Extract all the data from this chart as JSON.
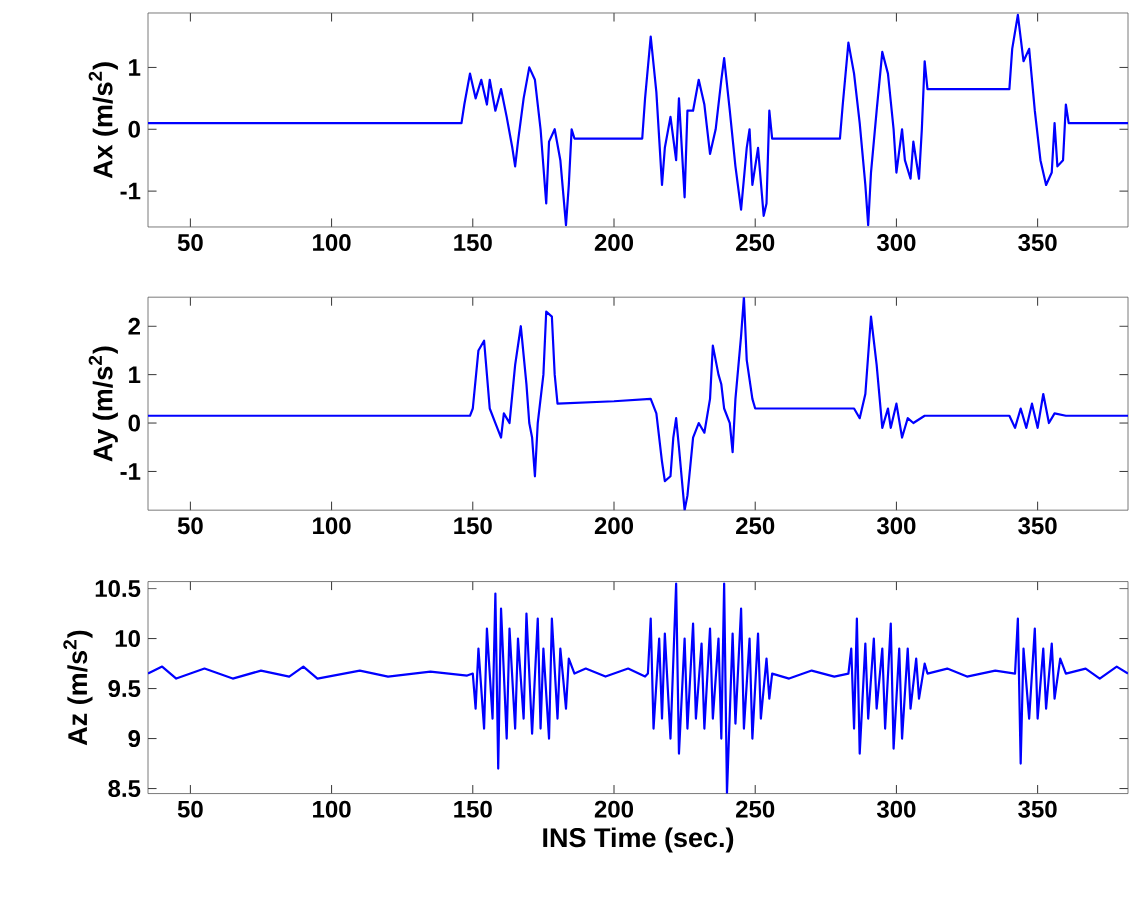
{
  "chart_data": [
    {
      "type": "line",
      "ylabel": "Ax (m/s$^{2}$)",
      "xlim": [
        35,
        382
      ],
      "xticks": [
        50,
        100,
        150,
        200,
        250,
        300,
        350
      ],
      "ylim": [
        -1.58,
        1.88
      ],
      "yticks": [
        -1,
        0,
        1
      ],
      "series": [
        {
          "color": "#0000ff",
          "x": [
            35,
            60,
            100,
            146,
            147,
            149,
            151,
            153,
            155,
            156,
            158,
            160,
            162,
            164,
            165,
            166,
            168,
            170,
            172,
            174,
            176,
            177,
            179,
            181,
            183,
            184,
            185,
            186,
            210,
            211,
            213,
            215,
            217,
            218,
            220,
            222,
            223,
            225,
            226,
            228,
            230,
            232,
            234,
            236,
            238,
            239,
            241,
            243,
            245,
            247,
            248,
            249,
            251,
            253,
            254,
            255,
            256,
            280,
            281,
            283,
            285,
            287,
            289,
            290,
            291,
            293,
            295,
            297,
            299,
            300,
            302,
            303,
            305,
            306,
            308,
            309,
            310,
            311,
            340,
            341,
            343,
            345,
            347,
            349,
            351,
            353,
            355,
            356,
            357,
            359,
            360,
            361,
            382
          ],
          "values": [
            0.1,
            0.1,
            0.1,
            0.1,
            0.4,
            0.9,
            0.5,
            0.8,
            0.4,
            0.8,
            0.3,
            0.65,
            0.2,
            -0.3,
            -0.6,
            -0.2,
            0.5,
            1.0,
            0.8,
            0.0,
            -1.2,
            -0.2,
            0.0,
            -0.5,
            -1.55,
            -0.9,
            0.0,
            -0.15,
            -0.15,
            0.5,
            1.5,
            0.6,
            -0.9,
            -0.3,
            0.2,
            -0.5,
            0.5,
            -1.1,
            0.3,
            0.3,
            0.8,
            0.4,
            -0.4,
            0.0,
            0.8,
            1.15,
            0.3,
            -0.6,
            -1.3,
            -0.3,
            0.0,
            -0.9,
            -0.3,
            -1.4,
            -1.2,
            0.3,
            -0.15,
            -0.15,
            0.4,
            1.4,
            0.9,
            0.1,
            -0.9,
            -1.55,
            -0.7,
            0.3,
            1.25,
            0.9,
            0.0,
            -0.7,
            0.0,
            -0.5,
            -0.8,
            -0.2,
            -0.8,
            0.0,
            1.1,
            0.65,
            0.65,
            1.3,
            1.85,
            1.1,
            1.3,
            0.3,
            -0.5,
            -0.9,
            -0.7,
            0.1,
            -0.6,
            -0.5,
            0.4,
            0.1,
            0.1
          ]
        }
      ]
    },
    {
      "type": "line",
      "ylabel": "Ay (m/s$^{2}$)",
      "xlim": [
        35,
        382
      ],
      "xticks": [
        50,
        100,
        150,
        200,
        250,
        300,
        350
      ],
      "ylim": [
        -1.8,
        2.6
      ],
      "yticks": [
        -1,
        0,
        1,
        2
      ],
      "series": [
        {
          "color": "#0000ff",
          "x": [
            35,
            149,
            150,
            152,
            154,
            156,
            158,
            160,
            161,
            163,
            165,
            167,
            169,
            170,
            171,
            172,
            173,
            175,
            176,
            178,
            179,
            180,
            200,
            213,
            215,
            217,
            218,
            220,
            221,
            222,
            223,
            225,
            226,
            228,
            230,
            232,
            234,
            235,
            237,
            238,
            239,
            241,
            242,
            243,
            245,
            246,
            247,
            249,
            250,
            285,
            287,
            289,
            291,
            293,
            295,
            297,
            298,
            300,
            302,
            304,
            306,
            310,
            340,
            342,
            344,
            346,
            348,
            350,
            352,
            354,
            356,
            360,
            382
          ],
          "values": [
            0.15,
            0.15,
            0.3,
            1.5,
            1.7,
            0.3,
            0.0,
            -0.3,
            0.2,
            0.0,
            1.2,
            2.0,
            0.8,
            0.0,
            -0.3,
            -1.1,
            0.0,
            1.0,
            2.3,
            2.2,
            1.0,
            0.4,
            0.45,
            0.5,
            0.2,
            -0.8,
            -1.2,
            -1.1,
            -0.3,
            0.1,
            -0.5,
            -1.8,
            -1.5,
            -0.3,
            0.0,
            -0.2,
            0.5,
            1.6,
            1.0,
            0.8,
            0.3,
            0.0,
            -0.6,
            0.5,
            1.8,
            2.6,
            1.3,
            0.5,
            0.3,
            0.3,
            0.1,
            0.6,
            2.2,
            1.2,
            -0.1,
            0.3,
            -0.1,
            0.4,
            -0.3,
            0.1,
            0.0,
            0.15,
            0.15,
            -0.1,
            0.3,
            -0.1,
            0.4,
            -0.1,
            0.6,
            0.0,
            0.2,
            0.15,
            0.15
          ]
        }
      ]
    },
    {
      "type": "line",
      "ylabel": "Az (m/s$^{2}$)",
      "xlabel": "INS Time (sec.)",
      "xlim": [
        35,
        382
      ],
      "xticks": [
        50,
        100,
        150,
        200,
        250,
        300,
        350
      ],
      "ylim": [
        8.45,
        10.57
      ],
      "yticks": [
        8.5,
        9,
        9.5,
        10,
        10.5
      ],
      "series": [
        {
          "color": "#0000ff",
          "x": [
            35,
            40,
            45,
            55,
            65,
            75,
            85,
            90,
            95,
            110,
            120,
            135,
            148,
            150,
            151,
            152,
            154,
            155,
            157,
            158,
            159,
            160,
            162,
            163,
            165,
            166,
            168,
            169,
            171,
            173,
            174,
            175,
            177,
            178,
            180,
            181,
            183,
            184,
            186,
            190,
            197,
            205,
            211,
            212,
            213,
            214,
            216,
            217,
            218,
            220,
            222,
            223,
            225,
            226,
            228,
            229,
            231,
            232,
            234,
            235,
            237,
            238,
            239,
            240,
            242,
            243,
            245,
            246,
            248,
            249,
            251,
            252,
            254,
            255,
            256,
            262,
            270,
            278,
            283,
            284,
            285,
            286,
            287,
            289,
            290,
            292,
            293,
            295,
            296,
            298,
            299,
            301,
            302,
            304,
            305,
            307,
            308,
            310,
            311,
            318,
            325,
            335,
            342,
            343,
            344,
            345,
            347,
            349,
            350,
            352,
            353,
            355,
            356,
            358,
            360,
            367,
            372,
            378,
            382
          ],
          "values": [
            9.65,
            9.72,
            9.6,
            9.7,
            9.6,
            9.68,
            9.62,
            9.72,
            9.6,
            9.68,
            9.62,
            9.67,
            9.63,
            9.65,
            9.3,
            9.9,
            9.1,
            10.1,
            9.2,
            10.45,
            8.7,
            10.3,
            9.0,
            10.1,
            9.1,
            10.0,
            9.2,
            10.25,
            9.05,
            10.2,
            9.1,
            9.9,
            9.0,
            10.2,
            9.2,
            9.9,
            9.3,
            9.8,
            9.65,
            9.7,
            9.62,
            9.7,
            9.62,
            9.65,
            10.2,
            9.1,
            10.0,
            9.2,
            10.05,
            9.0,
            10.55,
            8.85,
            10.0,
            9.1,
            10.15,
            9.2,
            9.95,
            9.1,
            10.1,
            9.2,
            10.0,
            9.0,
            10.55,
            8.45,
            10.05,
            9.15,
            10.3,
            9.1,
            10.0,
            9.0,
            10.05,
            9.2,
            9.8,
            9.4,
            9.65,
            9.6,
            9.68,
            9.62,
            9.65,
            9.9,
            9.1,
            10.2,
            8.85,
            9.95,
            9.2,
            10.0,
            9.3,
            9.9,
            9.1,
            10.15,
            8.9,
            9.9,
            9.0,
            9.9,
            9.3,
            9.8,
            9.4,
            9.75,
            9.65,
            9.7,
            9.62,
            9.68,
            9.65,
            10.2,
            8.75,
            9.9,
            9.2,
            10.1,
            9.2,
            9.9,
            9.3,
            9.95,
            9.4,
            9.8,
            9.65,
            9.7,
            9.6,
            9.72,
            9.65
          ]
        }
      ]
    }
  ]
}
